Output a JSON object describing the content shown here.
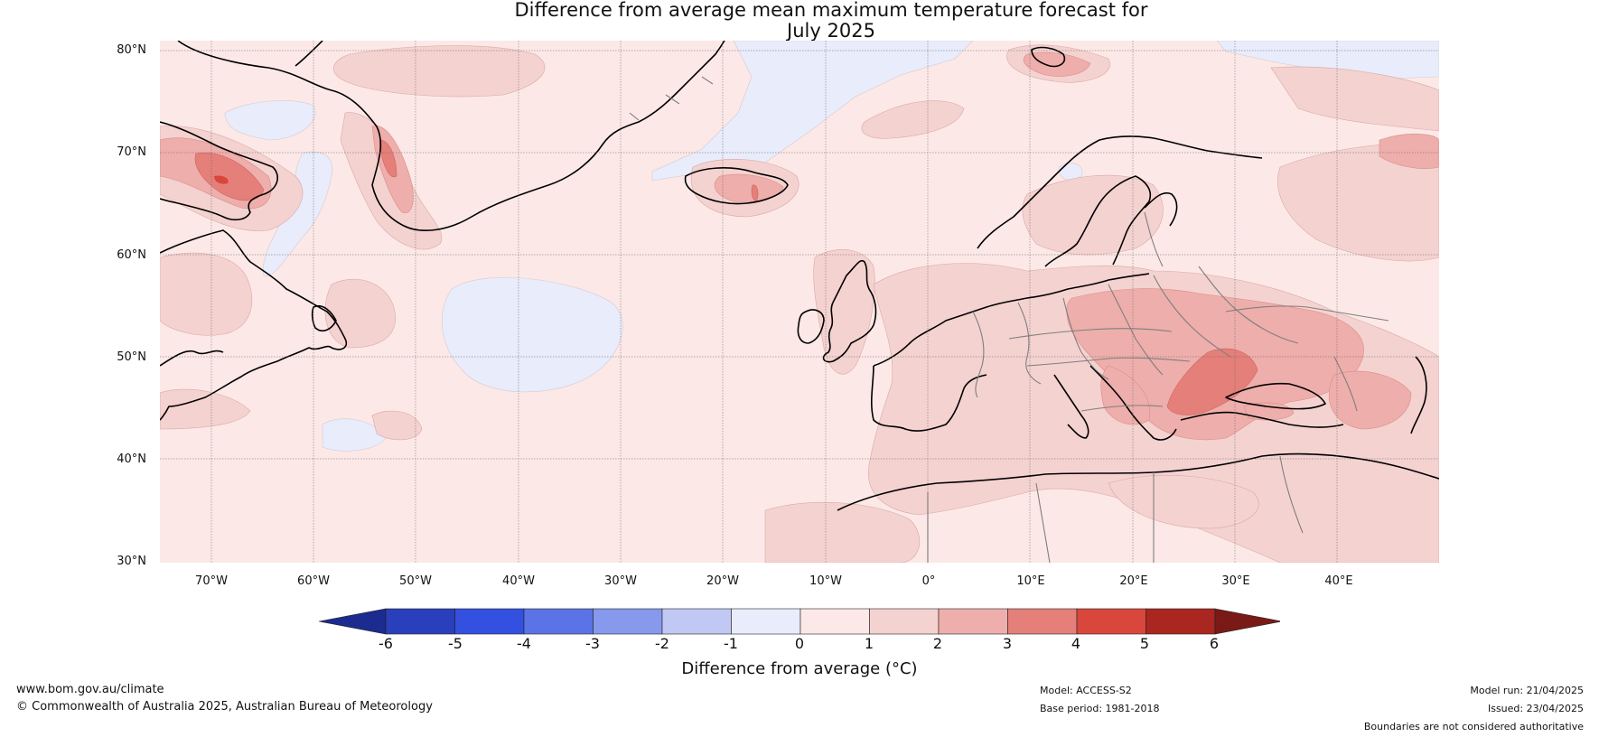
{
  "title": {
    "line1": "Difference from average mean maximum temperature forecast for",
    "line2": "July 2025"
  },
  "axes": {
    "lat_labels": [
      "80°N",
      "70°N",
      "60°N",
      "50°N",
      "40°N",
      "30°N"
    ],
    "lon_labels": [
      "70°W",
      "60°W",
      "50°W",
      "40°W",
      "30°W",
      "20°W",
      "10°W",
      "0°",
      "10°E",
      "20°E",
      "30°E",
      "40°E"
    ],
    "lat_values": [
      80,
      70,
      60,
      50,
      40,
      30
    ],
    "lon_values": [
      -70,
      -60,
      -50,
      -40,
      -30,
      -20,
      -10,
      0,
      10,
      20,
      30,
      40
    ],
    "lat_range": [
      30,
      81
    ],
    "lon_range": [
      -75,
      50
    ]
  },
  "colorbar": {
    "ticks": [
      "-6",
      "-5",
      "-4",
      "-3",
      "-2",
      "-1",
      "0",
      "1",
      "2",
      "3",
      "4",
      "5",
      "6"
    ],
    "colors": [
      "#1c2b8f",
      "#2a3fbb",
      "#3350e0",
      "#5b73e6",
      "#8799ec",
      "#c0c8f3",
      "#e8ecfb",
      "#fce9e7",
      "#f4d2d0",
      "#eeaeab",
      "#e57f79",
      "#d9463b",
      "#aa2620",
      "#7a1a16"
    ],
    "label": "Difference from average (°C)",
    "range": [
      -6,
      6
    ]
  },
  "footer": {
    "url": "www.bom.gov.au/climate",
    "copyright": "© Commonwealth of Australia 2025, Australian Bureau of Meteorology",
    "model": "Model: ACCESS-S2",
    "base_period": "Base period: 1981-2018",
    "model_run": "Model run: 21/04/2025",
    "issued": "Issued: 23/04/2025",
    "disclaimer": "Boundaries are not considered authoritative"
  },
  "map": {
    "background_anomaly_color": "#fce9e7",
    "coastline_color": "#000000",
    "border_color": "#808080",
    "gridline_color": "#555555"
  }
}
